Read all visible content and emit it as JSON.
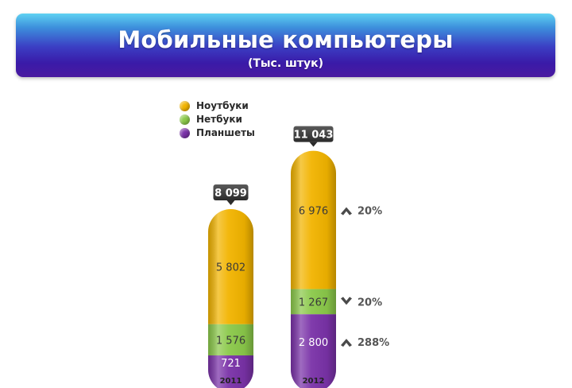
{
  "header": {
    "title": "Мобильные компьютеры",
    "subtitle": "(Тыс. штук)"
  },
  "colors": {
    "notebooks": "#f2b400",
    "netbooks": "#8bc94a",
    "tablets": "#7a32a8",
    "callout": "#3a3a3a",
    "arrow": "#4a4a4a"
  },
  "legend": [
    {
      "label": "Ноутбуки",
      "color": "#f2b400"
    },
    {
      "label": "Нетбуки",
      "color": "#8bc94a"
    },
    {
      "label": "Планшеты",
      "color": "#7a32a8"
    }
  ],
  "chart_data": {
    "type": "bar",
    "stacked": true,
    "categories": [
      "2011",
      "2012"
    ],
    "series": [
      {
        "name": "Ноутбуки",
        "values": [
          5802,
          6976
        ],
        "labels": [
          "5 802",
          "6 976"
        ]
      },
      {
        "name": "Нетбуки",
        "values": [
          1576,
          1267
        ],
        "labels": [
          "1 576",
          "1 267"
        ]
      },
      {
        "name": "Планшеты",
        "values": [
          721,
          2800
        ],
        "labels": [
          "721",
          "2 800"
        ]
      }
    ],
    "totals": [
      8099,
      11043
    ],
    "total_labels": [
      "8 099",
      "11 043"
    ],
    "changes": [
      {
        "series": "Ноутбуки",
        "direction": "up",
        "label": "20%"
      },
      {
        "series": "Нетбуки",
        "direction": "down",
        "label": "20%"
      },
      {
        "series": "Планшеты",
        "direction": "up",
        "label": "288%"
      }
    ],
    "title": "Мобильные компьютеры",
    "subtitle": "(Тыс. штук)",
    "legend_position": "top-left",
    "grid": false
  }
}
